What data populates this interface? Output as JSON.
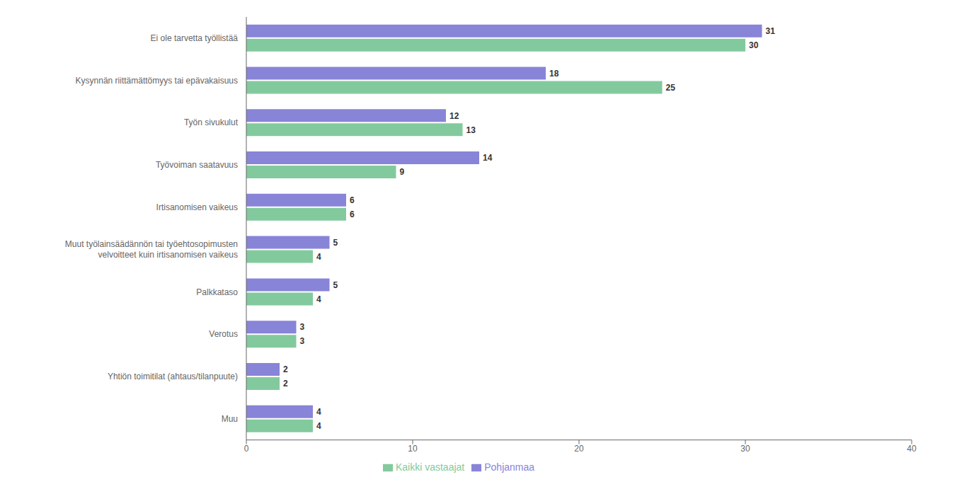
{
  "chart_data": {
    "type": "bar",
    "orientation": "horizontal",
    "categories": [
      "Ei ole tarvetta työllistää",
      "Kysynnän riittämättömyys tai epävakaisuus",
      "Työn sivukulut",
      "Työvoiman saatavuus",
      "Irtisanomisen vaikeus",
      "Muut työlainsäädännön tai työehtosopimusten\nvelvoitteet kuin irtisanomisen vaikeus",
      "Palkkataso",
      "Verotus",
      "Yhtiön toimitilat (ahtaus/tilanpuute)",
      "Muu"
    ],
    "series": [
      {
        "name": "Pohjanmaa",
        "color": "#8884d8",
        "values": [
          31,
          18,
          12,
          14,
          6,
          5,
          5,
          3,
          2,
          4
        ]
      },
      {
        "name": "Kaikki vastaajat",
        "color": "#82ca9d",
        "values": [
          30,
          25,
          13,
          9,
          6,
          4,
          4,
          3,
          2,
          4
        ]
      }
    ],
    "xlim": [
      0,
      40
    ],
    "xticks": [
      0,
      10,
      20,
      30,
      40
    ],
    "data_labels": true,
    "legend": "bottom",
    "grid": false
  }
}
